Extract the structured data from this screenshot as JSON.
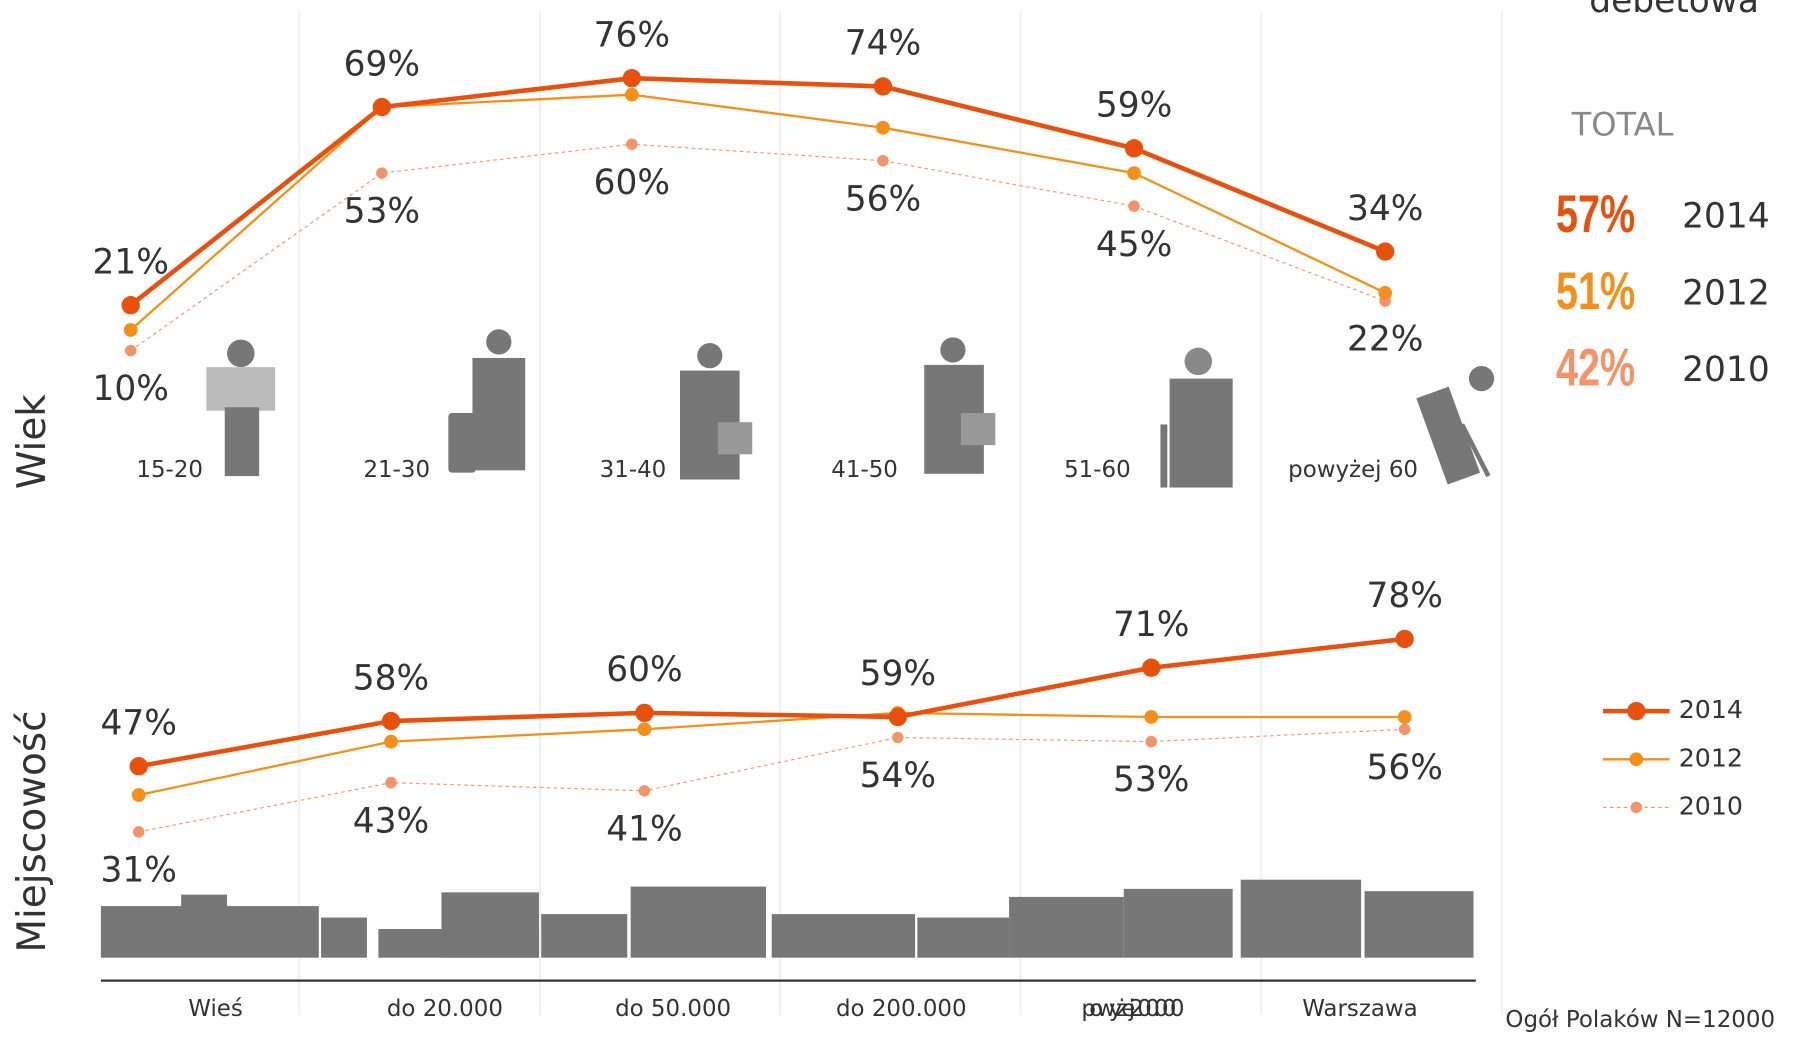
{
  "title": "debetowa",
  "total": {
    "title": "TOTAL",
    "values": [
      57,
      51,
      42
    ],
    "value_labels": [
      "57%",
      "51%",
      "42%"
    ],
    "years": [
      "2014",
      "2012",
      "2010"
    ],
    "colors": [
      "#e8500e",
      "#f39019",
      "#f4926a"
    ]
  },
  "footnote": "Ogół Polaków N=12000",
  "chart_data": [
    {
      "type": "line",
      "ylabel": "Wiek",
      "categories": [
        "15-20",
        "21-30",
        "31-40",
        "41-50",
        "51-60",
        "powyżej 60"
      ],
      "ylim": [
        5,
        80
      ],
      "series": [
        {
          "name": "2014",
          "color": "#e8500e",
          "values": [
            21,
            69,
            76,
            74,
            59,
            34
          ],
          "value_labels": [
            "21%",
            "69%",
            "76%",
            "74%",
            "59%",
            "34%"
          ]
        },
        {
          "name": "2012",
          "color": "#f39019",
          "values": [
            15,
            69,
            72,
            64,
            53,
            24
          ]
        },
        {
          "name": "2010",
          "color": "#f4926a",
          "values": [
            10,
            53,
            60,
            56,
            45,
            22
          ],
          "value_labels": [
            "10%",
            "53%",
            "60%",
            "56%",
            "45%",
            "22%"
          ]
        }
      ]
    },
    {
      "type": "line",
      "ylabel": "Miejscowość",
      "categories": [
        "Wieś",
        "do 20.000",
        "do 50.000",
        "do 200.000",
        "powyżej 200.000",
        "Warszawa"
      ],
      "ylim": [
        25,
        85
      ],
      "legend": "right",
      "series": [
        {
          "name": "2014",
          "color": "#e8500e",
          "values": [
            47,
            58,
            60,
            59,
            71,
            78
          ],
          "value_labels": [
            "47%",
            "58%",
            "60%",
            "59%",
            "71%",
            "78%"
          ]
        },
        {
          "name": "2012",
          "color": "#f39019",
          "values": [
            40,
            53,
            56,
            60,
            59,
            59
          ]
        },
        {
          "name": "2010",
          "color": "#f4926a",
          "values": [
            31,
            43,
            41,
            54,
            53,
            56
          ],
          "value_labels": [
            "31%",
            "43%",
            "41%",
            "54%",
            "53%",
            "56%"
          ]
        }
      ]
    }
  ]
}
